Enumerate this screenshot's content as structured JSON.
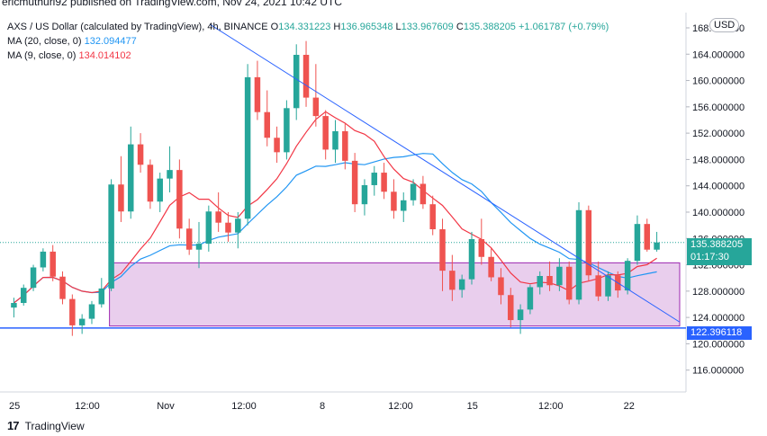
{
  "header": {
    "published_text": "ericmuthuri92 published on TradingView.com, Nov 24, 2021 10:42 UTC"
  },
  "legend": {
    "symbol": "AXS / US Dollar (calculated by TradingView), 4h, BINANCE",
    "o_label": "O",
    "o": "134.331223",
    "h_label": "H",
    "h": "136.965348",
    "l_label": "L",
    "l": "133.967609",
    "c_label": "C",
    "c": "135.388205",
    "change": "+1.061787 (+0.79%)",
    "ma20_label": "MA (20, close, 0)",
    "ma20_value": "132.094477",
    "ma9_label": "MA (9, close, 0)",
    "ma9_value": "134.014102"
  },
  "price_axis": {
    "currency_badge": "USD",
    "current_price": "135.388205",
    "countdown": "01:17:30",
    "support_level": "122.396118"
  },
  "footer": {
    "logo_glyph": "17",
    "brand": "TradingView"
  },
  "colors": {
    "up": "#26a69a",
    "down": "#ef5350",
    "ma20": "#2196f3",
    "ma9": "#f23645",
    "trendline": "#2962ff",
    "zone_fill": "#e1bee7",
    "zone_border": "#9c27b0"
  },
  "chart_data": {
    "type": "candlestick",
    "y_ticks": [
      "116.000000",
      "120.000000",
      "124.000000",
      "128.000000",
      "132.000000",
      "136.000000",
      "140.000000",
      "144.000000",
      "148.000000",
      "152.000000",
      "156.000000",
      "160.000000",
      "164.000000",
      "168.000000"
    ],
    "x_ticks": [
      "25",
      "12:00",
      "Nov",
      "12:00",
      "8",
      "12:00",
      "15",
      "12:00",
      "22"
    ],
    "ylim": [
      113.5,
      169.5
    ],
    "grid": false,
    "current_price": 135.388205,
    "support_level": 122.396118,
    "zone": {
      "from": 122.7,
      "to": 132.3
    },
    "trendline": {
      "start": [
        0.3,
        168.5
      ],
      "end": [
        1.0,
        123.3
      ]
    },
    "candles": [
      [
        125.5,
        127.0,
        124.0,
        126.2
      ],
      [
        126.2,
        129.0,
        125.8,
        128.5
      ],
      [
        128.5,
        132.0,
        128.0,
        131.6
      ],
      [
        131.6,
        134.5,
        131.0,
        134.0
      ],
      [
        134.0,
        135.0,
        129.5,
        130.2
      ],
      [
        130.2,
        131.0,
        126.0,
        126.8
      ],
      [
        126.8,
        127.5,
        121.2,
        122.8
      ],
      [
        122.8,
        124.5,
        121.5,
        123.8
      ],
      [
        123.8,
        126.5,
        123.0,
        126.0
      ],
      [
        126.0,
        130.0,
        125.5,
        128.4
      ],
      [
        128.4,
        145.0,
        128.0,
        144.2
      ],
      [
        144.2,
        148.5,
        138.5,
        140.1
      ],
      [
        140.1,
        153.0,
        139.0,
        150.3
      ],
      [
        150.3,
        152.0,
        146.0,
        147.2
      ],
      [
        147.2,
        148.0,
        140.5,
        141.6
      ],
      [
        141.6,
        146.0,
        140.0,
        145.1
      ],
      [
        145.1,
        150.0,
        143.0,
        146.4
      ],
      [
        146.4,
        148.0,
        136.0,
        137.5
      ],
      [
        137.5,
        139.0,
        133.5,
        134.3
      ],
      [
        134.3,
        138.5,
        131.5,
        135.2
      ],
      [
        135.2,
        141.0,
        134.0,
        140.1
      ],
      [
        140.1,
        143.0,
        137.0,
        138.4
      ],
      [
        138.4,
        140.0,
        135.5,
        136.9
      ],
      [
        136.9,
        140.0,
        134.5,
        139.0
      ],
      [
        139.0,
        162.5,
        138.0,
        160.5
      ],
      [
        160.5,
        163.0,
        154.0,
        155.2
      ],
      [
        155.2,
        158.5,
        150.0,
        151.3
      ],
      [
        151.3,
        153.0,
        147.5,
        149.1
      ],
      [
        149.1,
        157.0,
        148.0,
        155.8
      ],
      [
        155.8,
        165.5,
        154.0,
        163.9
      ],
      [
        163.9,
        166.0,
        156.0,
        157.4
      ],
      [
        157.4,
        162.5,
        153.0,
        154.6
      ],
      [
        154.6,
        155.5,
        148.0,
        149.5
      ],
      [
        149.5,
        154.0,
        147.5,
        152.3
      ],
      [
        152.3,
        153.5,
        146.5,
        147.8
      ],
      [
        147.8,
        149.0,
        140.0,
        141.2
      ],
      [
        141.2,
        145.0,
        139.5,
        144.1
      ],
      [
        144.1,
        147.0,
        142.5,
        146.0
      ],
      [
        146.0,
        147.5,
        142.0,
        143.1
      ],
      [
        143.1,
        145.0,
        139.0,
        140.2
      ],
      [
        140.2,
        143.0,
        138.5,
        141.8
      ],
      [
        141.8,
        145.0,
        141.0,
        144.3
      ],
      [
        144.3,
        145.5,
        140.5,
        141.2
      ],
      [
        141.2,
        142.5,
        136.5,
        137.4
      ],
      [
        137.4,
        139.0,
        128.0,
        131.1
      ],
      [
        131.1,
        133.5,
        126.5,
        128.2
      ],
      [
        128.2,
        130.5,
        127.0,
        129.8
      ],
      [
        129.8,
        137.0,
        129.0,
        135.9
      ],
      [
        135.9,
        139.0,
        132.0,
        133.2
      ],
      [
        133.2,
        134.5,
        129.5,
        130.1
      ],
      [
        130.1,
        131.5,
        126.0,
        127.4
      ],
      [
        127.4,
        128.5,
        122.5,
        123.6
      ],
      [
        123.6,
        126.0,
        121.5,
        125.2
      ],
      [
        125.2,
        129.0,
        124.5,
        128.6
      ],
      [
        128.6,
        131.0,
        127.5,
        130.3
      ],
      [
        130.3,
        132.5,
        128.0,
        128.9
      ],
      [
        128.9,
        133.0,
        128.0,
        131.7
      ],
      [
        131.7,
        132.5,
        126.0,
        126.7
      ],
      [
        126.7,
        141.5,
        126.0,
        140.3
      ],
      [
        140.3,
        141.0,
        129.5,
        130.4
      ],
      [
        130.4,
        132.5,
        126.5,
        127.2
      ],
      [
        127.2,
        131.0,
        126.5,
        130.4
      ],
      [
        130.4,
        131.0,
        127.0,
        128.1
      ],
      [
        128.1,
        133.0,
        127.5,
        132.6
      ],
      [
        132.6,
        139.5,
        132.0,
        138.2
      ],
      [
        138.2,
        139.0,
        134.0,
        134.3
      ],
      [
        134.3,
        137.0,
        134.0,
        135.4
      ]
    ]
  }
}
